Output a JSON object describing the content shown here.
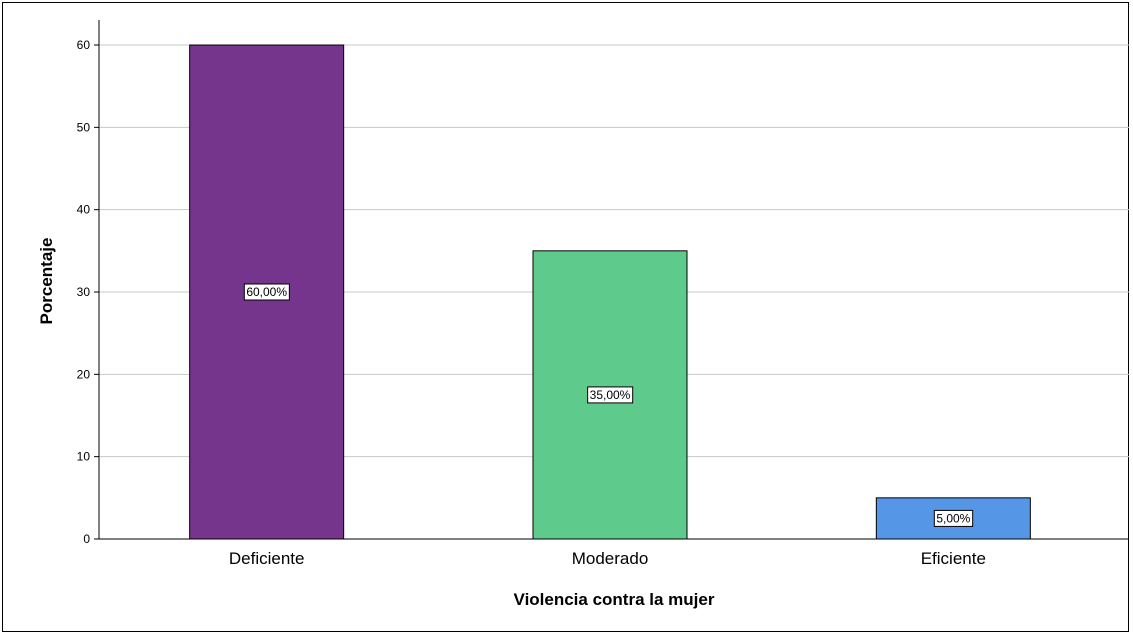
{
  "chart_data": {
    "type": "bar",
    "categories": [
      "Deficiente",
      "Moderado",
      "Eficiente"
    ],
    "values": [
      60,
      35,
      5
    ],
    "data_labels": [
      "60,00%",
      "35,00%",
      "5,00%"
    ],
    "colors": [
      "#76358C",
      "#5ECB8C",
      "#5596E6"
    ],
    "xlabel": "Violencia contra la mujer",
    "ylabel": "Porcentaje",
    "ylim": [
      0,
      60
    ],
    "yticks": [
      0,
      10,
      20,
      30,
      40,
      50,
      60
    ],
    "grid": true,
    "legend": "none"
  }
}
